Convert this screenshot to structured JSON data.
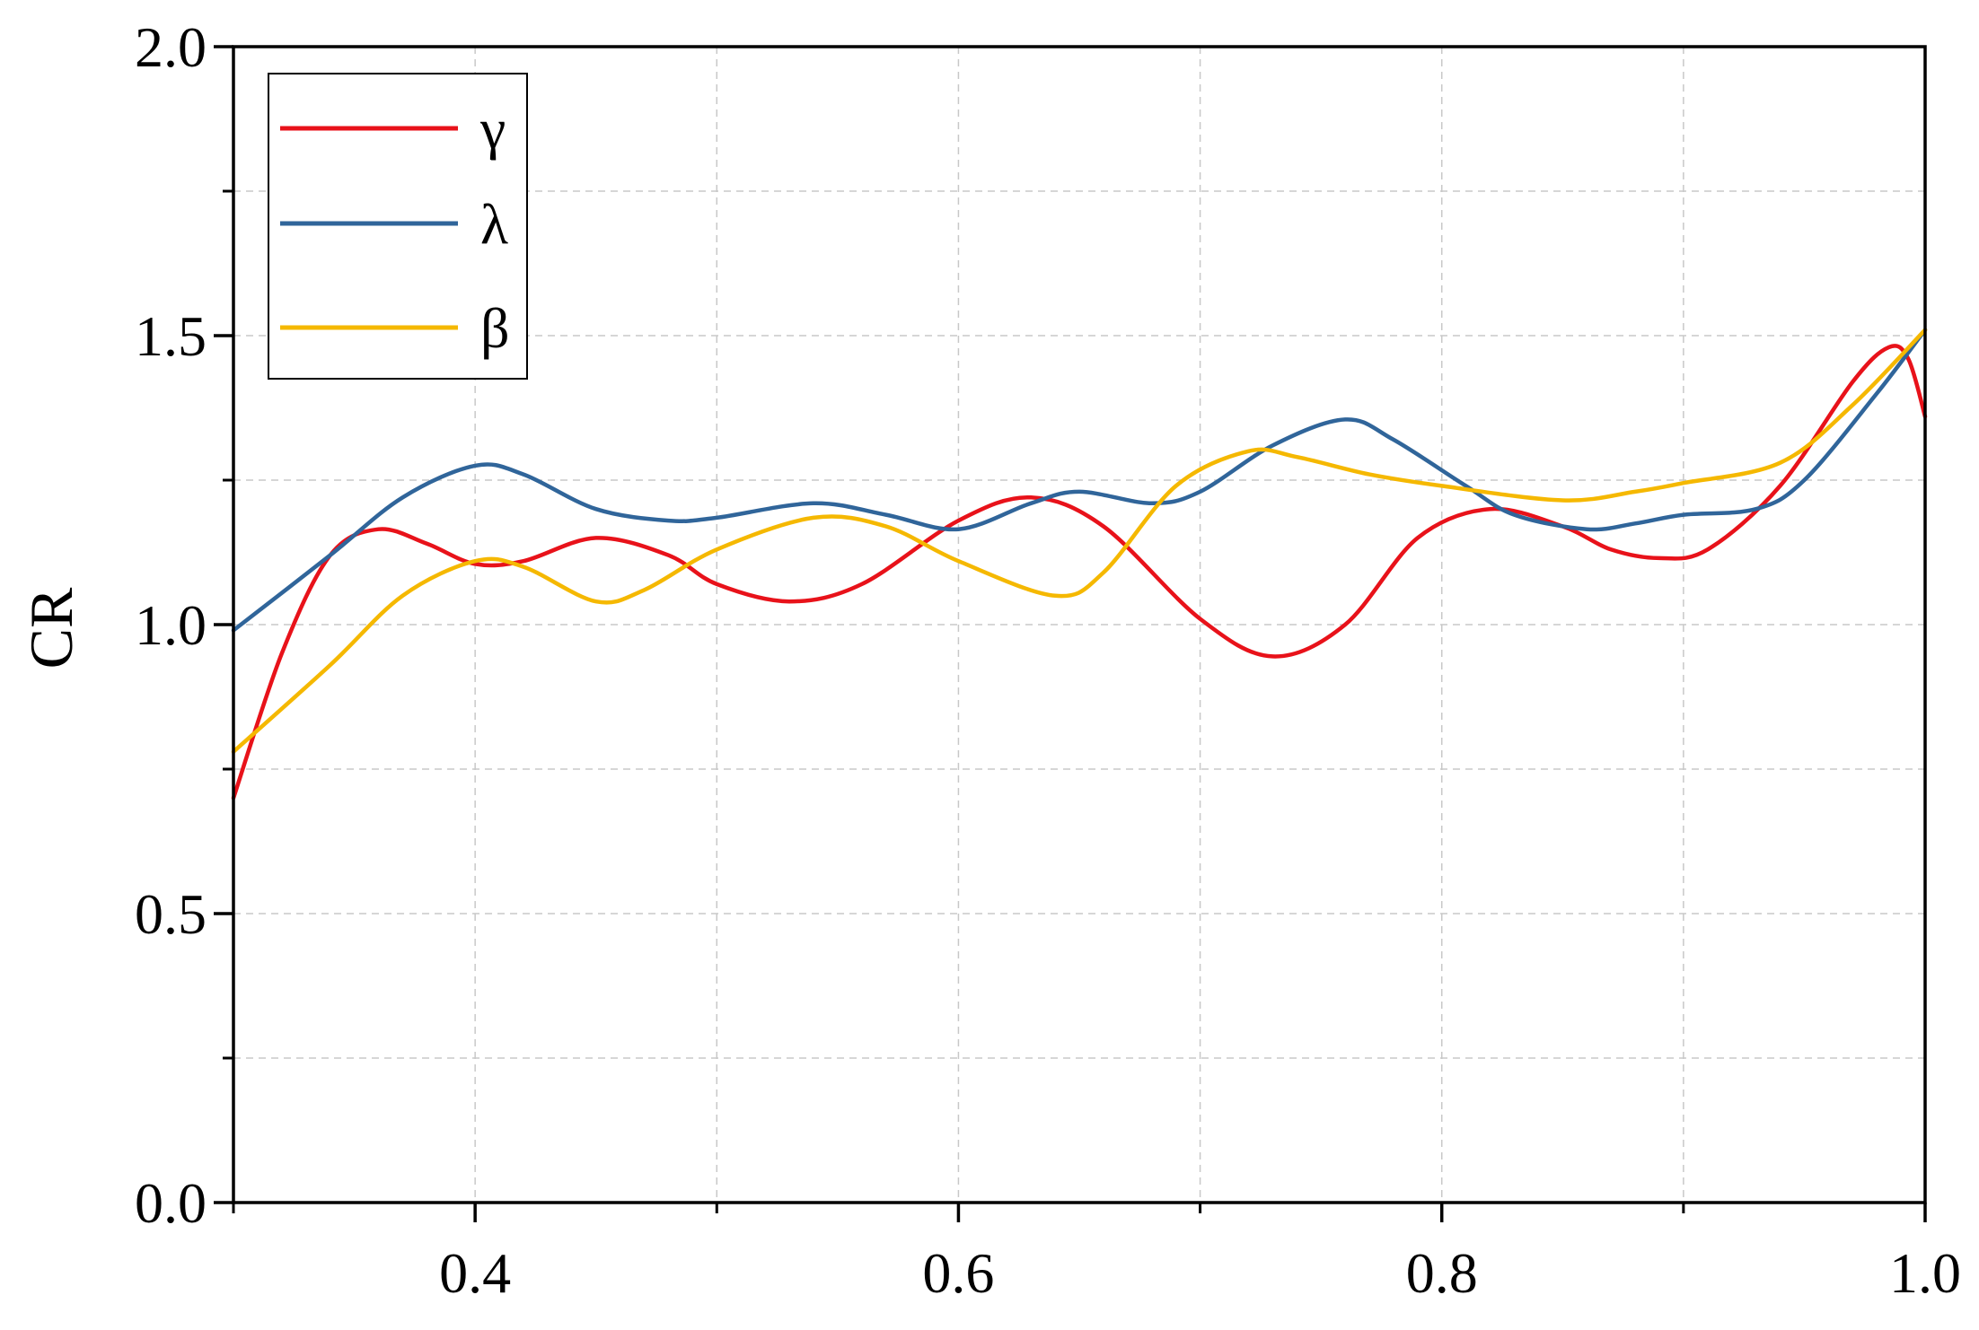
{
  "chart_data": {
    "type": "line",
    "title": "",
    "xlabel": "",
    "ylabel": "CR",
    "xlim": [
      0.3,
      1.0
    ],
    "ylim": [
      0.0,
      2.0
    ],
    "x_ticks": [
      0.4,
      0.6,
      0.8,
      1.0
    ],
    "x_tick_labels": [
      "0.4",
      "0.6",
      "0.8",
      "1.0"
    ],
    "y_ticks": [
      0.0,
      0.5,
      1.0,
      1.5,
      2.0
    ],
    "y_tick_labels": [
      "0.0",
      "0.5",
      "1.0",
      "1.5",
      "2.0"
    ],
    "grid": true,
    "legend_position": "top-left",
    "series": [
      {
        "name": "γ",
        "color": "#e8121a",
        "points": [
          [
            0.3,
            0.7
          ],
          [
            0.32,
            0.95
          ],
          [
            0.34,
            1.12
          ],
          [
            0.36,
            1.165
          ],
          [
            0.38,
            1.14
          ],
          [
            0.4,
            1.105
          ],
          [
            0.42,
            1.11
          ],
          [
            0.45,
            1.15
          ],
          [
            0.48,
            1.12
          ],
          [
            0.5,
            1.07
          ],
          [
            0.53,
            1.04
          ],
          [
            0.56,
            1.07
          ],
          [
            0.6,
            1.18
          ],
          [
            0.63,
            1.22
          ],
          [
            0.66,
            1.17
          ],
          [
            0.7,
            1.01
          ],
          [
            0.73,
            0.945
          ],
          [
            0.76,
            1.0
          ],
          [
            0.79,
            1.15
          ],
          [
            0.82,
            1.2
          ],
          [
            0.85,
            1.17
          ],
          [
            0.87,
            1.13
          ],
          [
            0.89,
            1.115
          ],
          [
            0.91,
            1.13
          ],
          [
            0.94,
            1.24
          ],
          [
            0.97,
            1.42
          ],
          [
            0.985,
            1.48
          ],
          [
            0.993,
            1.46
          ],
          [
            1.0,
            1.36
          ]
        ]
      },
      {
        "name": "λ",
        "color": "#30659a",
        "points": [
          [
            0.3,
            0.99
          ],
          [
            0.34,
            1.12
          ],
          [
            0.37,
            1.22
          ],
          [
            0.4,
            1.275
          ],
          [
            0.42,
            1.26
          ],
          [
            0.45,
            1.2
          ],
          [
            0.48,
            1.18
          ],
          [
            0.5,
            1.185
          ],
          [
            0.54,
            1.21
          ],
          [
            0.57,
            1.19
          ],
          [
            0.6,
            1.165
          ],
          [
            0.63,
            1.21
          ],
          [
            0.65,
            1.23
          ],
          [
            0.68,
            1.21
          ],
          [
            0.7,
            1.23
          ],
          [
            0.73,
            1.31
          ],
          [
            0.76,
            1.355
          ],
          [
            0.78,
            1.32
          ],
          [
            0.81,
            1.24
          ],
          [
            0.83,
            1.19
          ],
          [
            0.86,
            1.165
          ],
          [
            0.88,
            1.175
          ],
          [
            0.9,
            1.19
          ],
          [
            0.93,
            1.2
          ],
          [
            0.95,
            1.25
          ],
          [
            0.98,
            1.4
          ],
          [
            1.0,
            1.51
          ]
        ]
      },
      {
        "name": "β",
        "color": "#f5b800",
        "points": [
          [
            0.3,
            0.78
          ],
          [
            0.34,
            0.93
          ],
          [
            0.37,
            1.05
          ],
          [
            0.4,
            1.11
          ],
          [
            0.42,
            1.1
          ],
          [
            0.45,
            1.04
          ],
          [
            0.47,
            1.06
          ],
          [
            0.5,
            1.13
          ],
          [
            0.54,
            1.185
          ],
          [
            0.57,
            1.17
          ],
          [
            0.6,
            1.11
          ],
          [
            0.64,
            1.05
          ],
          [
            0.66,
            1.09
          ],
          [
            0.69,
            1.24
          ],
          [
            0.72,
            1.3
          ],
          [
            0.74,
            1.29
          ],
          [
            0.77,
            1.26
          ],
          [
            0.8,
            1.24
          ],
          [
            0.85,
            1.215
          ],
          [
            0.88,
            1.23
          ],
          [
            0.9,
            1.245
          ],
          [
            0.94,
            1.28
          ],
          [
            0.97,
            1.38
          ],
          [
            1.0,
            1.51
          ]
        ]
      }
    ]
  }
}
